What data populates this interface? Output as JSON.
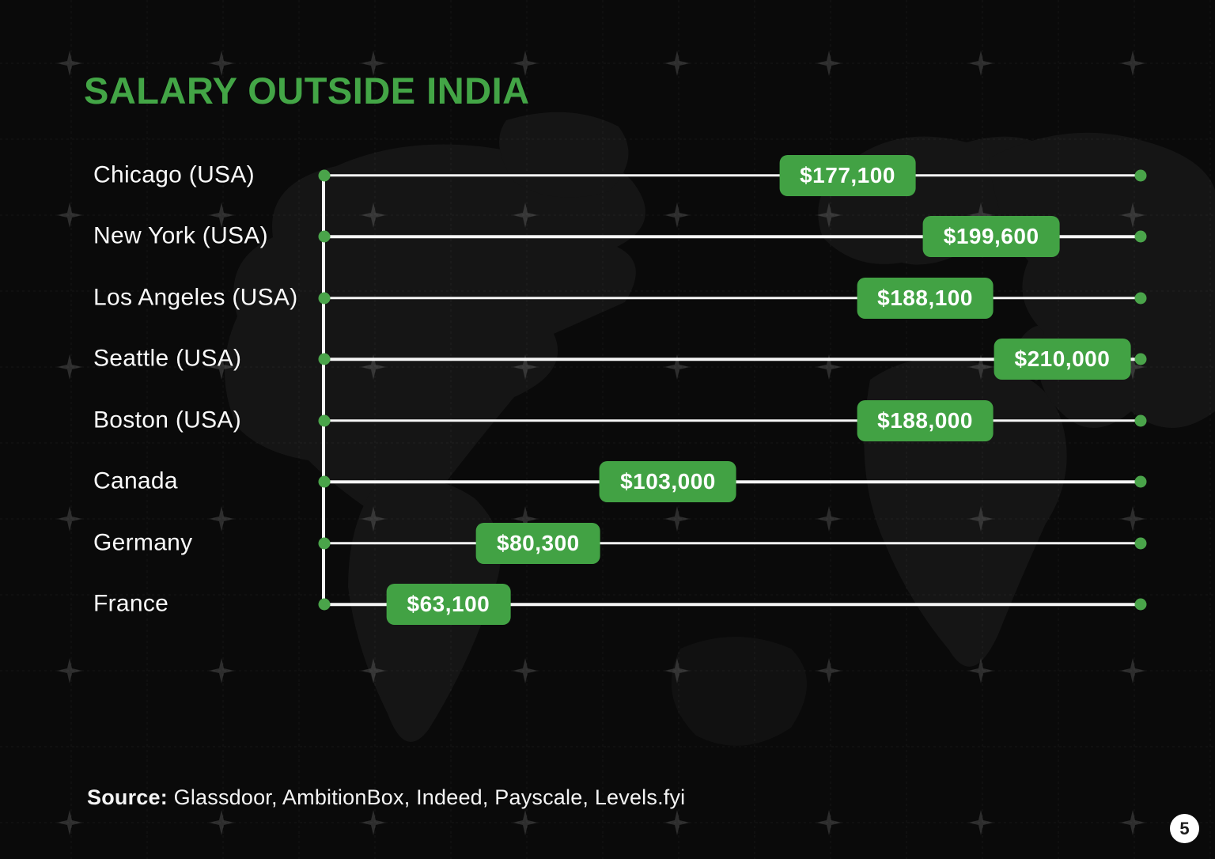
{
  "page": {
    "title": "SALARY OUTSIDE INDIA",
    "source_label": "Source:",
    "source_text": " Glassdoor, AmbitionBox, Indeed, Payscale, Levels.fyi",
    "page_number": "5"
  },
  "colors": {
    "bg": "#0a0a0a",
    "map": "#161616",
    "line": "#f5f5f5",
    "text": "#fafafa",
    "green": "#43a546",
    "green-badge": "#42a244",
    "green-dot": "#4aa44a"
  },
  "chart_data": {
    "type": "bar",
    "orientation": "horizontal",
    "title": "SALARY OUTSIDE INDIA",
    "categories": [
      "Chicago (USA)",
      "New York (USA)",
      "Los Angeles (USA)",
      "Seattle (USA)",
      "Boston (USA)",
      "Canada",
      "Germany",
      "France"
    ],
    "values": [
      177100,
      199600,
      188100,
      210000,
      188000,
      103000,
      80300,
      63100
    ],
    "value_labels": [
      "$177,100",
      "$199,600",
      "$188,100",
      "$210,000",
      "$188,000",
      "$103,000",
      "$80,300",
      "$63,100"
    ],
    "badge_fracs": [
      0.641,
      0.817,
      0.736,
      0.904,
      0.736,
      0.421,
      0.262,
      0.152
    ],
    "xlim": [
      0,
      210000
    ],
    "xlabel": "",
    "ylabel": "",
    "legend": false,
    "grid": true,
    "source": "Glassdoor, AmbitionBox, Indeed, Payscale, Levels.fyi"
  }
}
